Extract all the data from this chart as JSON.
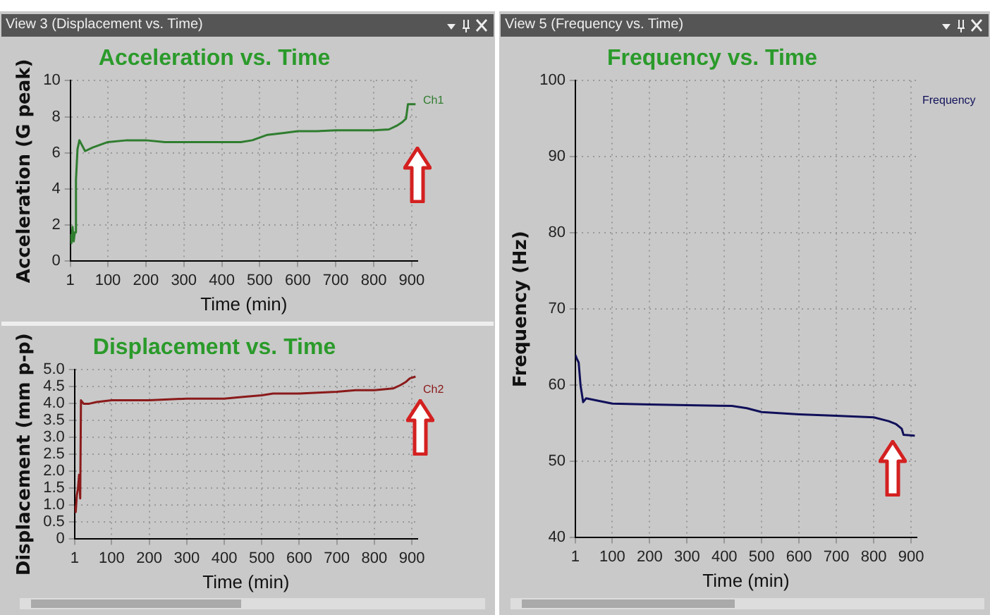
{
  "chart_data": [
    {
      "type": "line",
      "title": "Acceleration vs. Time",
      "xlabel": "Time (min)",
      "ylabel": "Acceleration (G peak)",
      "annotations": [
        "View 3 (Displacement vs. Time)"
      ],
      "series": [
        {
          "name": "Ch1",
          "color": "#2f7d2f",
          "x": [
            1,
            4,
            7,
            10,
            13,
            16,
            20,
            25,
            40,
            60,
            100,
            150,
            200,
            250,
            300,
            350,
            400,
            450,
            480,
            520,
            560,
            600,
            650,
            700,
            750,
            800,
            840,
            860,
            875,
            885,
            890,
            900,
            910
          ],
          "values": [
            1.5,
            1.0,
            1.9,
            1.1,
            1.6,
            4.5,
            6.2,
            6.7,
            6.1,
            6.3,
            6.6,
            6.7,
            6.7,
            6.6,
            6.6,
            6.6,
            6.6,
            6.6,
            6.7,
            7.0,
            7.1,
            7.2,
            7.2,
            7.25,
            7.25,
            7.25,
            7.3,
            7.5,
            7.7,
            7.9,
            8.7,
            8.7,
            8.7
          ]
        }
      ],
      "xlim": [
        1,
        915
      ],
      "xticks": [
        1,
        100,
        200,
        300,
        400,
        500,
        600,
        700,
        800,
        900
      ],
      "ylim": [
        0,
        10
      ],
      "yticks": [
        0,
        2,
        4,
        6,
        8,
        10
      ],
      "grid": true,
      "legend": "top right"
    },
    {
      "type": "line",
      "title": "Displacement vs. Time",
      "xlabel": "Time (min)",
      "ylabel": "Displacement (mm p-p)",
      "series": [
        {
          "name": "Ch2",
          "color": "#8b1a1a",
          "x": [
            1,
            4,
            7,
            10,
            13,
            16,
            18,
            25,
            40,
            60,
            100,
            200,
            300,
            400,
            450,
            500,
            530,
            600,
            700,
            750,
            800,
            850,
            870,
            885,
            895,
            910
          ],
          "values": [
            1.0,
            0.8,
            1.3,
            1.5,
            1.9,
            1.2,
            4.1,
            4.0,
            4.0,
            4.05,
            4.1,
            4.1,
            4.15,
            4.15,
            4.2,
            4.25,
            4.3,
            4.3,
            4.35,
            4.4,
            4.4,
            4.45,
            4.55,
            4.65,
            4.75,
            4.8
          ]
        }
      ],
      "xlim": [
        1,
        915
      ],
      "xticks": [
        1,
        100,
        200,
        300,
        400,
        500,
        600,
        700,
        800,
        900
      ],
      "ylim": [
        0,
        5
      ],
      "yticks": [
        0,
        0.5,
        {
          "value": 1,
          "label": "1.0"
        },
        1.5,
        {
          "value": 2,
          "label": "2.0"
        },
        2.5,
        {
          "value": 3,
          "label": "3.0"
        },
        3.5,
        {
          "value": 4,
          "label": "4.0"
        },
        4.5,
        {
          "value": 5,
          "label": "5.0"
        }
      ],
      "grid": true,
      "legend": "top right"
    },
    {
      "type": "line",
      "title": "Frequency vs. Time",
      "xlabel": "Time (min)",
      "ylabel": "Frequency (Hz)",
      "annotations": [
        "View 5 (Frequency vs. Time)"
      ],
      "series": [
        {
          "name": "Frequency",
          "color": "#10105a",
          "x": [
            1,
            5,
            10,
            15,
            22,
            30,
            60,
            100,
            200,
            300,
            420,
            460,
            500,
            600,
            700,
            800,
            840,
            860,
            875,
            880,
            910
          ],
          "values": [
            64,
            63.5,
            63,
            60,
            57.8,
            58.3,
            58,
            57.6,
            57.5,
            57.4,
            57.3,
            57,
            56.5,
            56.2,
            56,
            55.8,
            55.3,
            54.9,
            54.3,
            53.5,
            53.4
          ]
        }
      ],
      "xlim": [
        1,
        915
      ],
      "xticks": [
        1,
        100,
        200,
        300,
        400,
        500,
        600,
        700,
        800,
        900
      ],
      "ylim": [
        40,
        100
      ],
      "yticks": [
        40,
        50,
        60,
        70,
        80,
        90,
        100
      ],
      "grid": true,
      "legend": "top right"
    }
  ]
}
